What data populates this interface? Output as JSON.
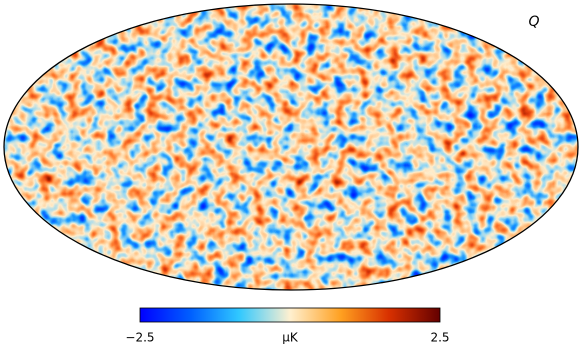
{
  "title": "Q",
  "colorbar": {
    "ticks": [
      {
        "value": -2.5,
        "label": "−2.5"
      },
      2.5
    ],
    "unit": "μK"
  }
}
